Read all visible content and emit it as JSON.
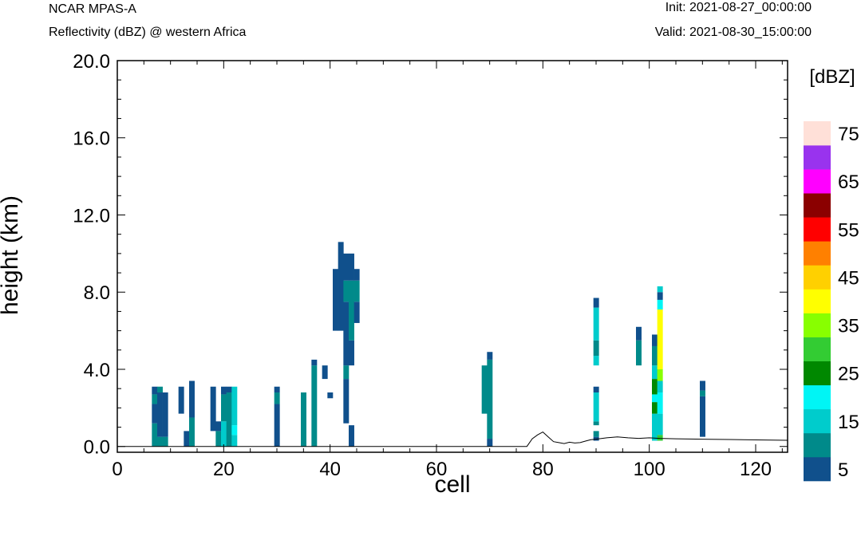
{
  "header": {
    "model": "NCAR MPAS-A",
    "subtitle": "Reflectivity (dBZ) @ western Africa",
    "init": "Init: 2021-08-27_00:00:00",
    "valid": "Valid: 2021-08-30_15:00:00"
  },
  "chart_data": {
    "type": "heatmap",
    "xlabel": "cell",
    "ylabel": "height (km)",
    "xlim": [
      0,
      126
    ],
    "ylim": [
      -0.3,
      20
    ],
    "x_ticks": [
      0,
      20,
      40,
      60,
      80,
      100,
      120
    ],
    "x_tick_labels": [
      "0",
      "20",
      "40",
      "60",
      "80",
      "100",
      "120"
    ],
    "y_ticks": [
      0,
      4,
      8,
      12,
      16,
      20
    ],
    "y_tick_labels": [
      "0.0",
      "4.0",
      "8.0",
      "12.0",
      "16.0",
      "20.0"
    ],
    "colorbar": {
      "unit_label": "[dBZ]",
      "levels": [
        5,
        10,
        15,
        20,
        25,
        30,
        35,
        40,
        45,
        50,
        55,
        60,
        65,
        70,
        75
      ],
      "tick_labels": [
        "5",
        "15",
        "25",
        "35",
        "45",
        "55",
        "65",
        "75"
      ],
      "colors": [
        "#10508c",
        "#008a8a",
        "#00cccc",
        "#00f5f5",
        "#008800",
        "#33cc33",
        "#88ff00",
        "#ffff00",
        "#ffd000",
        "#ff8000",
        "#ff0000",
        "#8b0000",
        "#ff00ff",
        "#9933ee",
        "#ffe0d8"
      ]
    },
    "cells": [
      {
        "x": 7,
        "y0": 0,
        "y1": 1.2,
        "level": 10
      },
      {
        "x": 7,
        "y0": 1.2,
        "y1": 2.2,
        "level": 5
      },
      {
        "x": 7,
        "y0": 2.2,
        "y1": 2.7,
        "level": 10
      },
      {
        "x": 7,
        "y0": 2.7,
        "y1": 3.1,
        "level": 5
      },
      {
        "x": 8,
        "y0": 0,
        "y1": 0.5,
        "level": 10
      },
      {
        "x": 8,
        "y0": 0.5,
        "y1": 2.8,
        "level": 5
      },
      {
        "x": 8,
        "y0": 2.8,
        "y1": 3.1,
        "level": 10
      },
      {
        "x": 9,
        "y0": 0,
        "y1": 0.5,
        "level": 10
      },
      {
        "x": 9,
        "y0": 0.5,
        "y1": 2.8,
        "level": 5
      },
      {
        "x": 12,
        "y0": 1.7,
        "y1": 3.1,
        "level": 5
      },
      {
        "x": 13,
        "y0": 0,
        "y1": 0.8,
        "level": 5
      },
      {
        "x": 14,
        "y0": 0,
        "y1": 1.5,
        "level": 10
      },
      {
        "x": 14,
        "y0": 1.5,
        "y1": 3.4,
        "level": 5
      },
      {
        "x": 18,
        "y0": 0.8,
        "y1": 3.1,
        "level": 5
      },
      {
        "x": 19,
        "y0": 0,
        "y1": 0.8,
        "level": 10
      },
      {
        "x": 19,
        "y0": 0.8,
        "y1": 1.3,
        "level": 5
      },
      {
        "x": 20,
        "y0": 0,
        "y1": 1.3,
        "level": 15
      },
      {
        "x": 20,
        "y0": 1.3,
        "y1": 2.7,
        "level": 10
      },
      {
        "x": 20,
        "y0": 2.7,
        "y1": 3.1,
        "level": 5
      },
      {
        "x": 21,
        "y0": 0,
        "y1": 2.8,
        "level": 10
      },
      {
        "x": 21,
        "y0": 2.8,
        "y1": 3.1,
        "level": 5
      },
      {
        "x": 22,
        "y0": 0,
        "y1": 0.6,
        "level": 15
      },
      {
        "x": 22,
        "y0": 0.6,
        "y1": 1.1,
        "level": 20
      },
      {
        "x": 22,
        "y0": 1.1,
        "y1": 3.1,
        "level": 15
      },
      {
        "x": 30,
        "y0": 0,
        "y1": 2.2,
        "level": 5
      },
      {
        "x": 30,
        "y0": 2.2,
        "y1": 2.8,
        "level": 10
      },
      {
        "x": 30,
        "y0": 2.8,
        "y1": 3.1,
        "level": 5
      },
      {
        "x": 35,
        "y0": 0,
        "y1": 2.8,
        "level": 10
      },
      {
        "x": 37,
        "y0": 0,
        "y1": 4.2,
        "level": 10
      },
      {
        "x": 37,
        "y0": 4.2,
        "y1": 4.5,
        "level": 5
      },
      {
        "x": 39,
        "y0": 3.5,
        "y1": 4.2,
        "level": 5
      },
      {
        "x": 40,
        "y0": 2.5,
        "y1": 2.8,
        "level": 5
      },
      {
        "x": 41,
        "y0": 6.0,
        "y1": 9.2,
        "level": 5
      },
      {
        "x": 42,
        "y0": 6.0,
        "y1": 10.6,
        "level": 5
      },
      {
        "x": 43,
        "y0": 1.2,
        "y1": 3.5,
        "level": 5
      },
      {
        "x": 43,
        "y0": 3.5,
        "y1": 4.2,
        "level": 10
      },
      {
        "x": 43,
        "y0": 4.2,
        "y1": 7.5,
        "level": 5
      },
      {
        "x": 43,
        "y0": 7.5,
        "y1": 8.6,
        "level": 10
      },
      {
        "x": 43,
        "y0": 8.6,
        "y1": 10.0,
        "level": 5
      },
      {
        "x": 44,
        "y0": 0,
        "y1": 1.1,
        "level": 5
      },
      {
        "x": 44,
        "y0": 4.2,
        "y1": 5.5,
        "level": 5
      },
      {
        "x": 44,
        "y0": 5.5,
        "y1": 8.6,
        "level": 10
      },
      {
        "x": 44,
        "y0": 8.6,
        "y1": 10.0,
        "level": 5
      },
      {
        "x": 45,
        "y0": 6.4,
        "y1": 7.5,
        "level": 5
      },
      {
        "x": 45,
        "y0": 7.5,
        "y1": 8.6,
        "level": 10
      },
      {
        "x": 45,
        "y0": 8.6,
        "y1": 9.2,
        "level": 5
      },
      {
        "x": 69,
        "y0": 1.7,
        "y1": 4.2,
        "level": 10
      },
      {
        "x": 70,
        "y0": 0,
        "y1": 0.4,
        "level": 5
      },
      {
        "x": 70,
        "y0": 0.4,
        "y1": 4.5,
        "level": 10
      },
      {
        "x": 70,
        "y0": 4.5,
        "y1": 4.9,
        "level": 5
      },
      {
        "x": 90,
        "y0": 0.3,
        "y1": 0.5,
        "level": 5
      },
      {
        "x": 90,
        "y0": 0.5,
        "y1": 0.8,
        "level": 10
      },
      {
        "x": 90,
        "y0": 1.1,
        "y1": 1.3,
        "level": 10
      },
      {
        "x": 90,
        "y0": 1.3,
        "y1": 2.8,
        "level": 15
      },
      {
        "x": 90,
        "y0": 2.8,
        "y1": 3.1,
        "level": 5
      },
      {
        "x": 90,
        "y0": 4.2,
        "y1": 4.7,
        "level": 15
      },
      {
        "x": 90,
        "y0": 4.7,
        "y1": 5.5,
        "level": 10
      },
      {
        "x": 90,
        "y0": 5.5,
        "y1": 7.2,
        "level": 15
      },
      {
        "x": 90,
        "y0": 7.2,
        "y1": 7.7,
        "level": 5
      },
      {
        "x": 98,
        "y0": 4.2,
        "y1": 5.5,
        "level": 10
      },
      {
        "x": 98,
        "y0": 5.5,
        "y1": 6.2,
        "level": 5
      },
      {
        "x": 101,
        "y0": 0.3,
        "y1": 1.7,
        "level": 15
      },
      {
        "x": 101,
        "y0": 1.7,
        "y1": 2.3,
        "level": 25
      },
      {
        "x": 101,
        "y0": 2.3,
        "y1": 2.7,
        "level": 20
      },
      {
        "x": 101,
        "y0": 2.7,
        "y1": 3.5,
        "level": 25
      },
      {
        "x": 101,
        "y0": 3.5,
        "y1": 4.2,
        "level": 15
      },
      {
        "x": 101,
        "y0": 4.2,
        "y1": 5.2,
        "level": 10
      },
      {
        "x": 101,
        "y0": 5.2,
        "y1": 5.8,
        "level": 5
      },
      {
        "x": 102,
        "y0": 0.3,
        "y1": 0.6,
        "level": 30
      },
      {
        "x": 102,
        "y0": 0.6,
        "y1": 1.7,
        "level": 15
      },
      {
        "x": 102,
        "y0": 1.7,
        "y1": 2.8,
        "level": 20
      },
      {
        "x": 102,
        "y0": 2.8,
        "y1": 3.4,
        "level": 15
      },
      {
        "x": 102,
        "y0": 3.4,
        "y1": 4.0,
        "level": 35
      },
      {
        "x": 102,
        "y0": 4.0,
        "y1": 7.1,
        "level": 40
      },
      {
        "x": 102,
        "y0": 7.1,
        "y1": 7.6,
        "level": 20
      },
      {
        "x": 102,
        "y0": 7.6,
        "y1": 8.0,
        "level": 5
      },
      {
        "x": 102,
        "y0": 8.0,
        "y1": 8.3,
        "level": 15
      },
      {
        "x": 110,
        "y0": 0.5,
        "y1": 2.6,
        "level": 5
      },
      {
        "x": 110,
        "y0": 2.6,
        "y1": 2.9,
        "level": 10
      },
      {
        "x": 110,
        "y0": 2.9,
        "y1": 3.4,
        "level": 5
      }
    ],
    "terrain": {
      "x": [
        0,
        77,
        78,
        79,
        80,
        81,
        82,
        83,
        84,
        85,
        86,
        87,
        88,
        89,
        90,
        92,
        94,
        96,
        98,
        100,
        102,
        105,
        110,
        115,
        120,
        126
      ],
      "y": [
        0,
        0,
        0.4,
        0.6,
        0.75,
        0.5,
        0.25,
        0.2,
        0.15,
        0.22,
        0.18,
        0.2,
        0.28,
        0.35,
        0.38,
        0.45,
        0.5,
        0.45,
        0.42,
        0.45,
        0.42,
        0.4,
        0.38,
        0.36,
        0.34,
        0.32
      ]
    }
  }
}
